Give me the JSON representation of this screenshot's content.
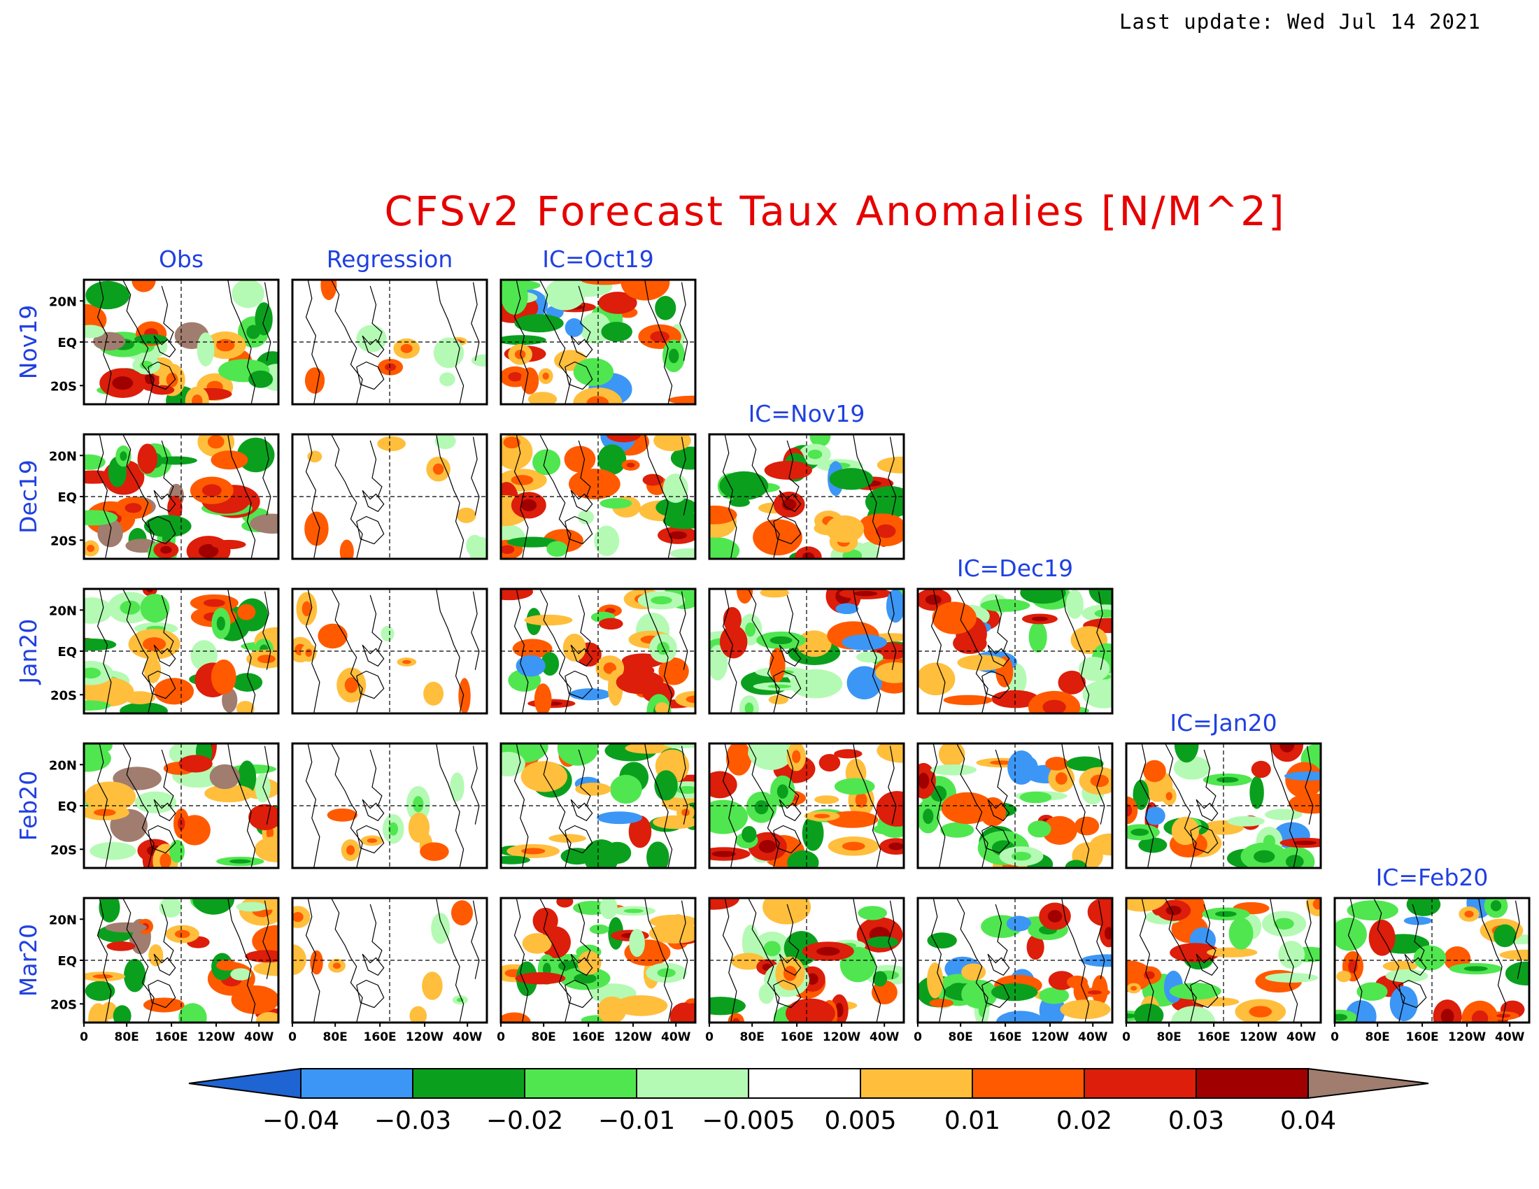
{
  "last_update": "Last update: Wed Jul 14 2021",
  "title": "CFSv2 Forecast Taux Anomalies [N/M^2]",
  "columns": [
    "Obs",
    "Regression",
    "IC=Oct19",
    "IC=Nov19",
    "IC=Dec19",
    "IC=Jan20",
    "IC=Feb20"
  ],
  "rows": [
    "Nov19",
    "Dec19",
    "Jan20",
    "Feb20",
    "Mar20"
  ],
  "y_ticks": [
    "20N",
    "EQ",
    "20S"
  ],
  "x_ticks": [
    "0",
    "80E",
    "160E",
    "120W",
    "40W"
  ],
  "colorbar": {
    "labels": [
      "−0.04",
      "−0.03",
      "−0.02",
      "−0.01",
      "−0.005",
      "0.005",
      "0.01",
      "0.02",
      "0.03",
      "0.04"
    ],
    "colors": [
      "#1e64d2",
      "#3c96f5",
      "#0aa01e",
      "#50e650",
      "#b4fab4",
      "#ffffff",
      "#ffbe3c",
      "#ff5a00",
      "#dc1e0a",
      "#a00000",
      "#a07d6e"
    ]
  },
  "colors": {
    "title": "#e60000",
    "label": "#2040e0"
  }
}
